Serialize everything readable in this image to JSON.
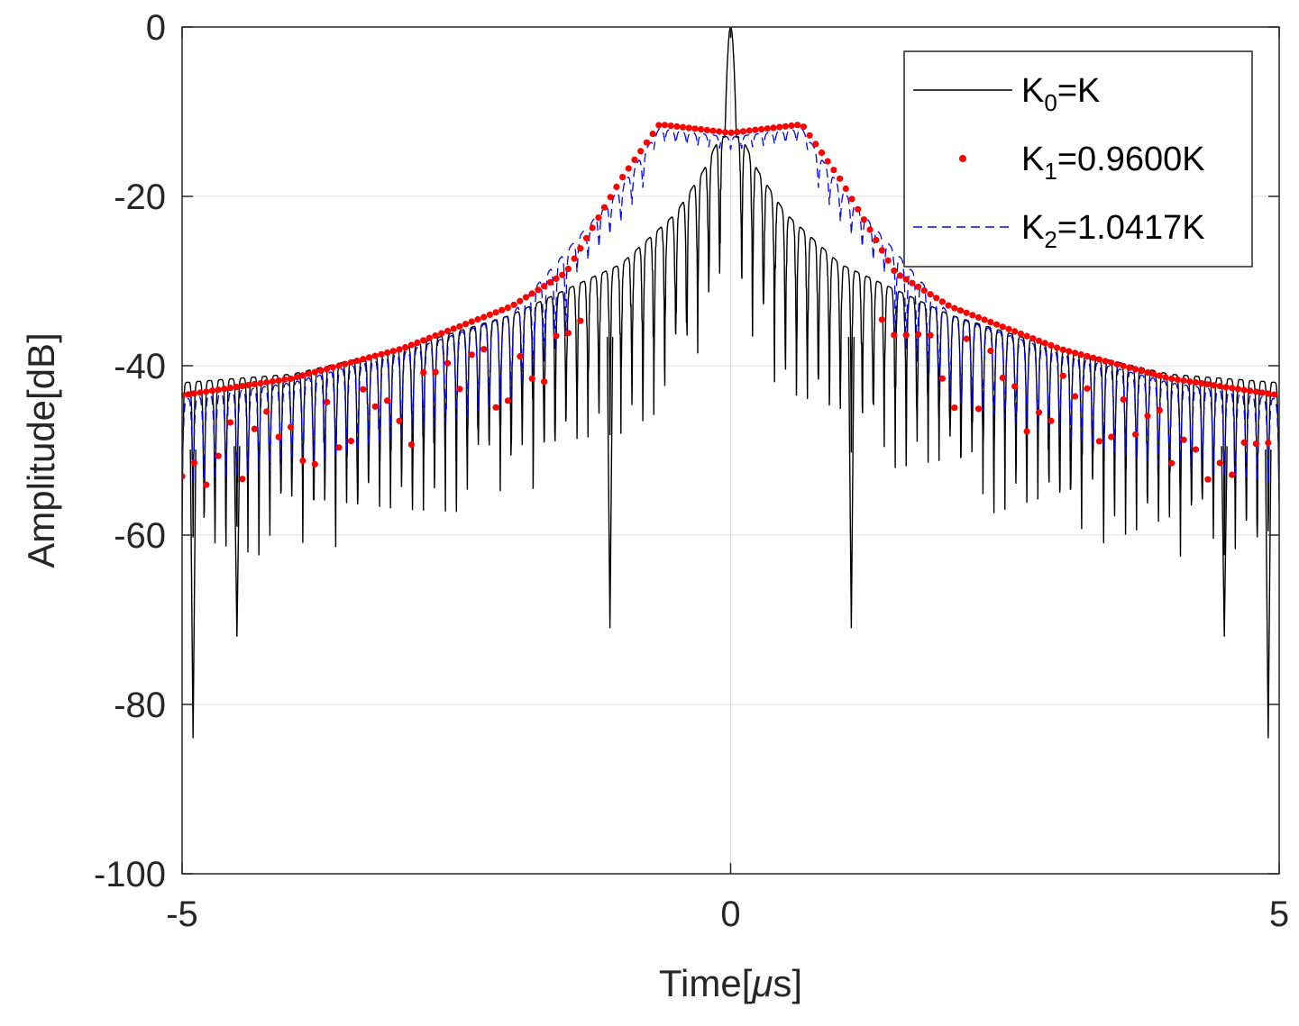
{
  "chart_data": {
    "type": "line",
    "title": "",
    "xlabel": "Time[μs]",
    "xlabel_prefix": "Time[",
    "xlabel_mu": "μ",
    "xlabel_suffix": "s]",
    "ylabel": "Amplitude[dB]",
    "xlim": [
      -5,
      5
    ],
    "ylim": [
      -100,
      0
    ],
    "grid": true,
    "xticks": [
      -5,
      0,
      5
    ],
    "xtick_labels": [
      "-5",
      "0",
      "5"
    ],
    "yticks": [
      0,
      -20,
      -40,
      -60,
      -80,
      -100
    ],
    "ytick_labels": [
      "0",
      "-20",
      "-40",
      "-60",
      "-80",
      "-100"
    ],
    "legend_position": "top-right",
    "series": [
      {
        "name": "K0=K",
        "label_base": "K",
        "label_sub": "0",
        "label_rest": "=K",
        "style": "solid",
        "color": "#000000",
        "main_lobe_peak_db": 0,
        "first_sidelobe_db": -13.3,
        "envelope_samples": [
          {
            "x": 0.1,
            "y": -13
          },
          {
            "x": 0.25,
            "y": -17
          },
          {
            "x": 0.5,
            "y": -22
          },
          {
            "x": 1.0,
            "y": -28
          },
          {
            "x": 1.5,
            "y": -31
          },
          {
            "x": 2.0,
            "y": -34
          },
          {
            "x": 3.0,
            "y": -38
          },
          {
            "x": 4.0,
            "y": -41
          },
          {
            "x": 5.0,
            "y": -42
          }
        ],
        "deep_nulls": [
          {
            "x": -4.9,
            "y": -84
          },
          {
            "x": -4.5,
            "y": -72
          },
          {
            "x": -1.1,
            "y": -71
          },
          {
            "x": 1.1,
            "y": -71
          },
          {
            "x": 4.5,
            "y": -72
          },
          {
            "x": 4.9,
            "y": -84
          }
        ]
      },
      {
        "name": "K1=0.9600K",
        "label_base": "K",
        "label_sub": "1",
        "label_rest": "=0.9600K",
        "style": "dotted-markers",
        "color": "#ff0000",
        "plateau_db": -12.5,
        "plateau_range_us": [
          -0.75,
          0.75
        ],
        "envelope_samples": [
          {
            "x": -5.0,
            "y": -43.5
          },
          {
            "x": -4.0,
            "y": -41.5
          },
          {
            "x": -3.0,
            "y": -38
          },
          {
            "x": -2.0,
            "y": -33
          },
          {
            "x": -1.5,
            "y": -29
          },
          {
            "x": -1.0,
            "y": -18
          },
          {
            "x": -0.65,
            "y": -11.5
          },
          {
            "x": 0.0,
            "y": -12.5
          },
          {
            "x": 0.65,
            "y": -11.5
          },
          {
            "x": 1.0,
            "y": -18
          },
          {
            "x": 1.5,
            "y": -29
          },
          {
            "x": 2.0,
            "y": -33
          },
          {
            "x": 3.0,
            "y": -38
          },
          {
            "x": 4.0,
            "y": -41.5
          },
          {
            "x": 5.0,
            "y": -43.5
          }
        ]
      },
      {
        "name": "K2=1.0417K",
        "label_base": "K",
        "label_sub": "2",
        "label_rest": "=1.0417K",
        "style": "dashed",
        "color": "#0000ff",
        "plateau_db": -12.5,
        "plateau_range_us": [
          -0.75,
          0.75
        ],
        "envelope_samples": [
          {
            "x": -5.0,
            "y": -44
          },
          {
            "x": -4.0,
            "y": -42
          },
          {
            "x": -3.0,
            "y": -38.5
          },
          {
            "x": -2.0,
            "y": -34
          },
          {
            "x": -1.0,
            "y": -19
          },
          {
            "x": -0.65,
            "y": -12
          },
          {
            "x": 0.0,
            "y": -13
          },
          {
            "x": 0.65,
            "y": -12
          },
          {
            "x": 1.0,
            "y": -19
          },
          {
            "x": 2.0,
            "y": -34
          },
          {
            "x": 3.0,
            "y": -38.5
          },
          {
            "x": 4.0,
            "y": -42
          },
          {
            "x": 5.0,
            "y": -44
          }
        ]
      }
    ]
  }
}
